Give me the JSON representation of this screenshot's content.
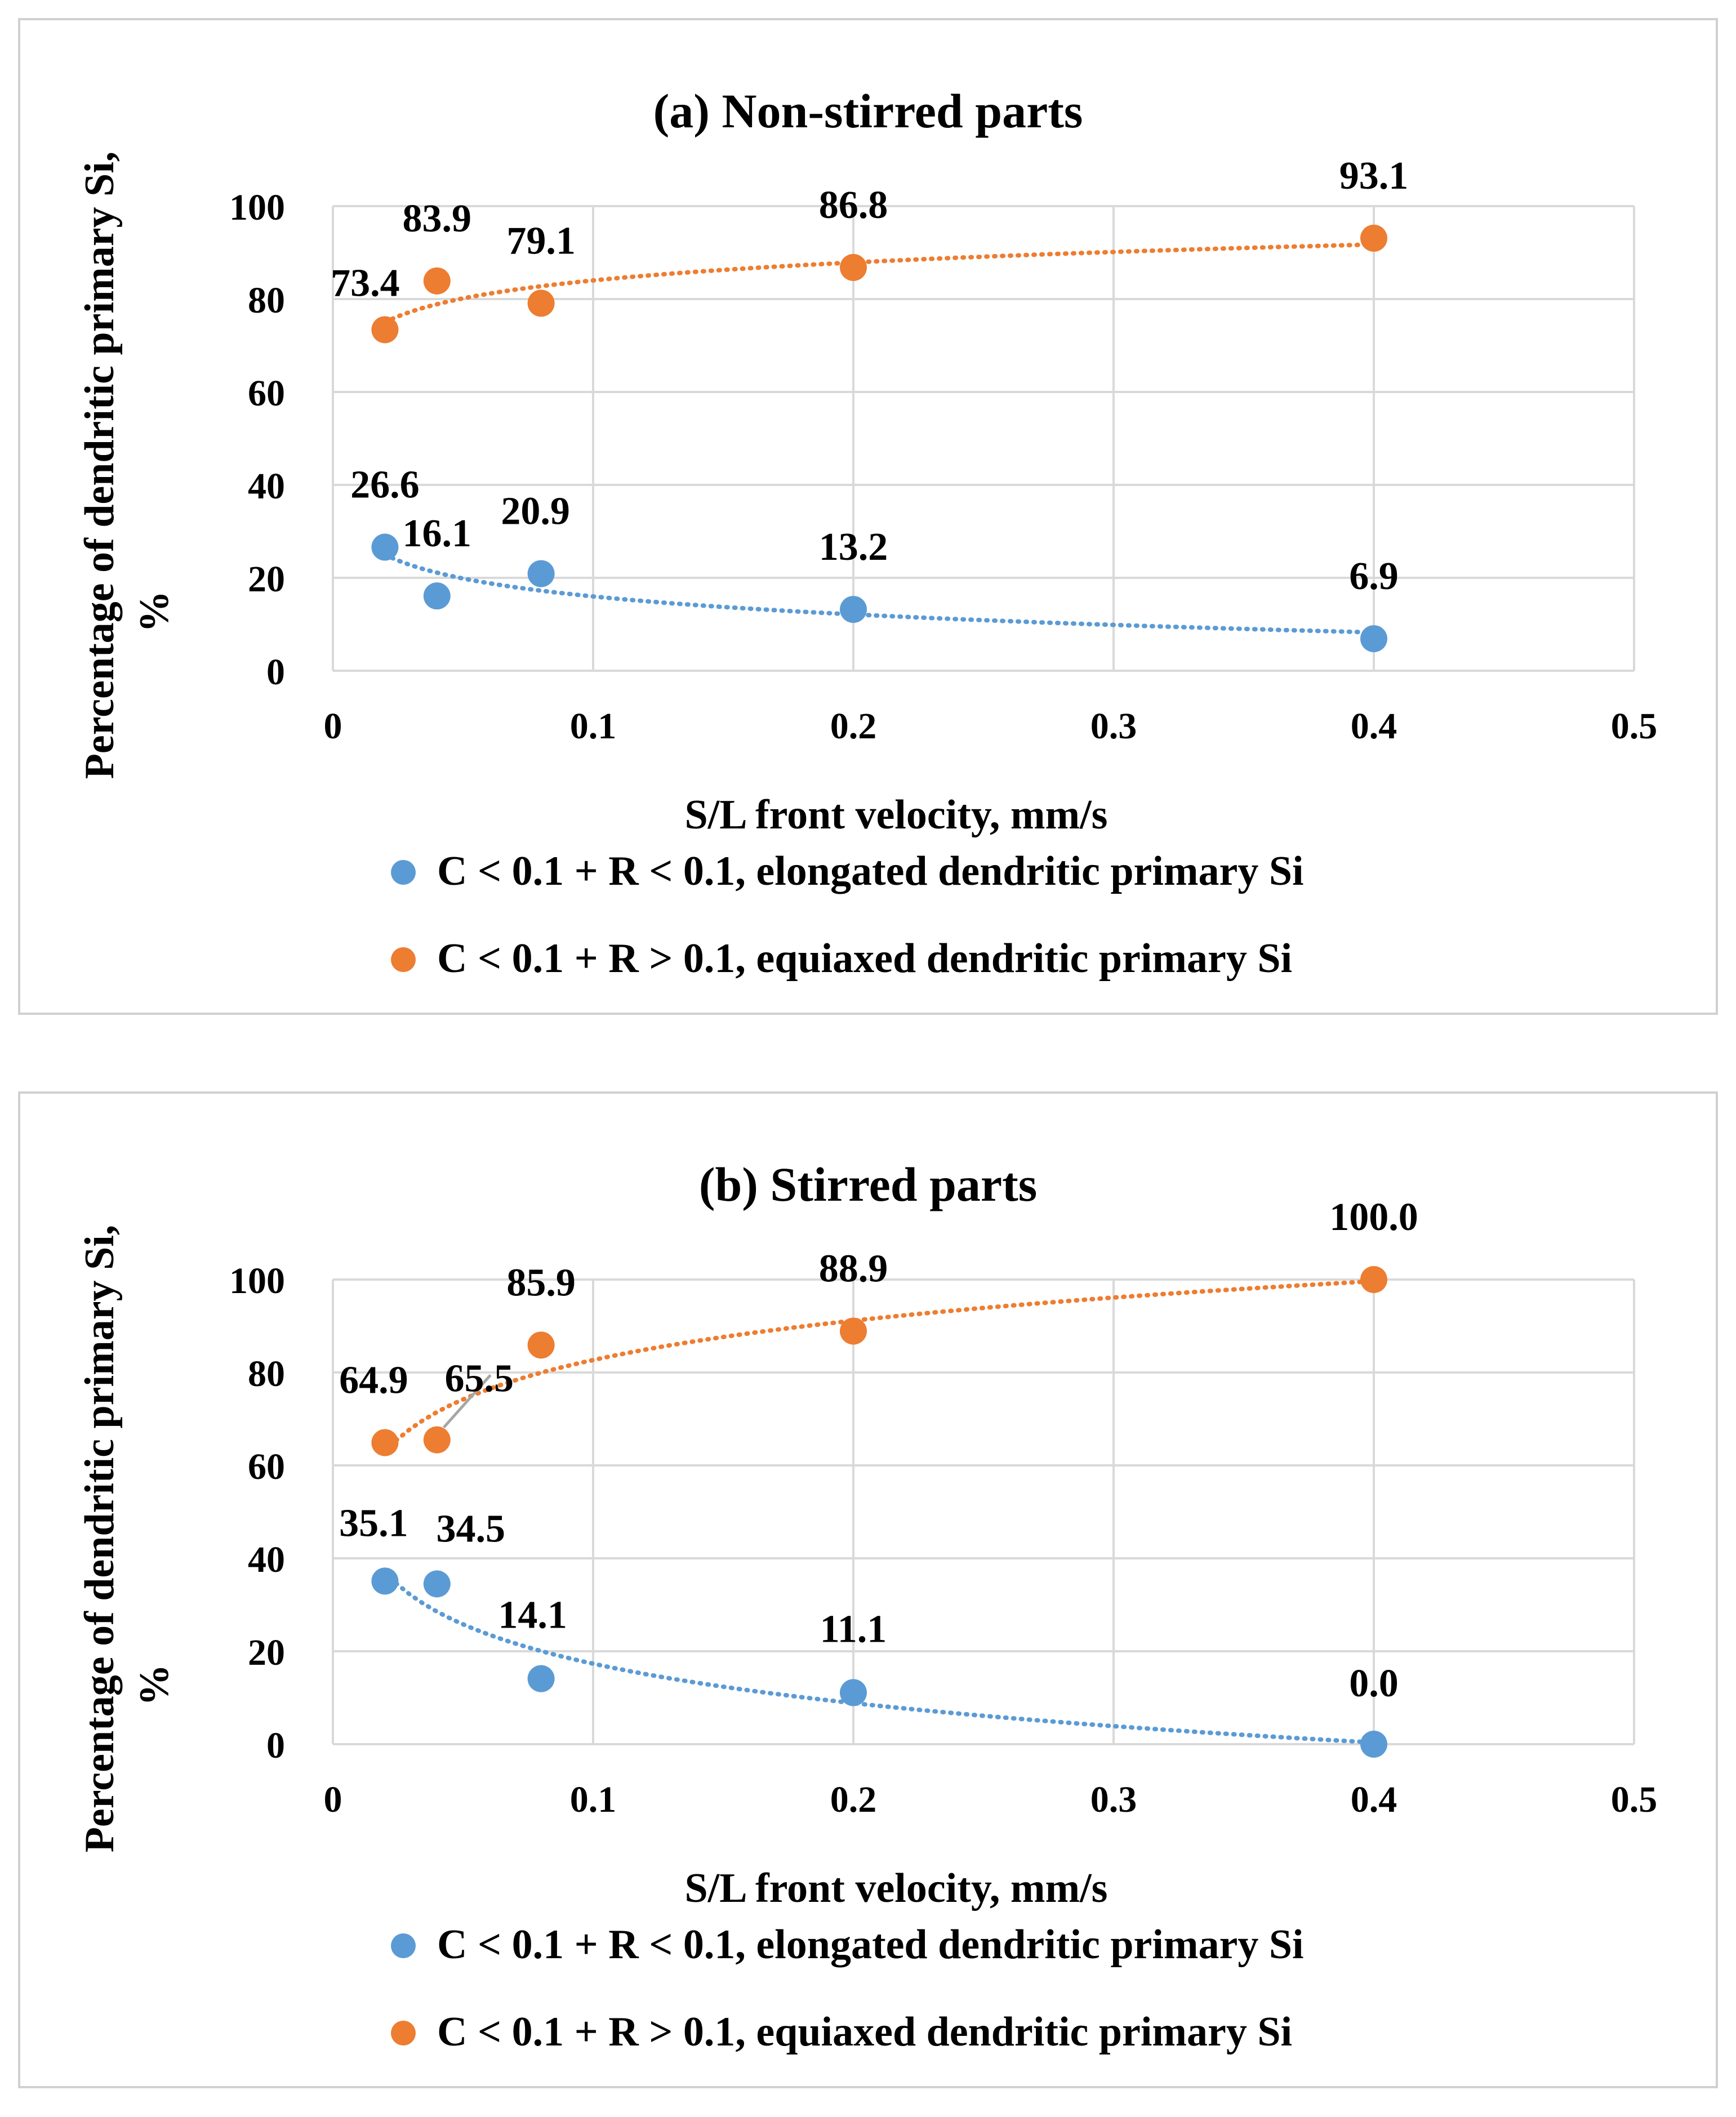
{
  "chart_data": [
    {
      "type": "scatter",
      "title": "(a) Non-stirred parts",
      "xlabel": "S/L front  velocity, mm/s",
      "ylabel_lines": [
        "Percentage of dendritic primary Si,",
        "%"
      ],
      "xlim": [
        0,
        0.5
      ],
      "ylim": [
        0,
        100
      ],
      "xticks": [
        0,
        0.1,
        0.2,
        0.3,
        0.4,
        0.5
      ],
      "xtick_labels": [
        "0",
        "0.1",
        "0.2",
        "0.3",
        "0.4",
        "0.5"
      ],
      "yticks": [
        0,
        20,
        40,
        60,
        80,
        100
      ],
      "ytick_labels": [
        "0",
        "20",
        "40",
        "60",
        "80",
        "100"
      ],
      "grid": true,
      "legend_position": "bottom",
      "series": [
        {
          "name": "C < 0.1 + R < 0.1, elongated dendritic primary Si",
          "color": "#5b9bd5",
          "trendline": "dotted",
          "x": [
            0.02,
            0.04,
            0.08,
            0.2,
            0.4
          ],
          "values": [
            26.6,
            16.1,
            20.9,
            13.2,
            6.9
          ],
          "labels": [
            "26.6",
            "16.1",
            "20.9",
            "13.2",
            "6.9"
          ]
        },
        {
          "name": "C < 0.1 + R > 0.1, equiaxed dendritic primary Si",
          "color": "#ed7d31",
          "trendline": "dotted",
          "x": [
            0.02,
            0.04,
            0.08,
            0.2,
            0.4
          ],
          "values": [
            73.4,
            83.9,
            79.1,
            86.8,
            93.1
          ],
          "labels": [
            "73.4",
            "83.9",
            "79.1",
            "86.8",
            "93.1"
          ]
        }
      ]
    },
    {
      "type": "scatter",
      "title": "(b) Stirred parts",
      "xlabel": "S/L front  velocity, mm/s",
      "ylabel_lines": [
        "Percentage of dendritic primary Si,",
        "%"
      ],
      "xlim": [
        0,
        0.5
      ],
      "ylim": [
        0,
        100
      ],
      "xticks": [
        0,
        0.1,
        0.2,
        0.3,
        0.4,
        0.5
      ],
      "xtick_labels": [
        "0",
        "0.1",
        "0.2",
        "0.3",
        "0.4",
        "0.5"
      ],
      "yticks": [
        0,
        20,
        40,
        60,
        80,
        100
      ],
      "ytick_labels": [
        "0",
        "20",
        "40",
        "60",
        "80",
        "100"
      ],
      "grid": true,
      "legend_position": "bottom",
      "series": [
        {
          "name": "C < 0.1 + R < 0.1, elongated dendritic primary Si",
          "color": "#5b9bd5",
          "trendline": "dotted",
          "x": [
            0.02,
            0.04,
            0.08,
            0.2,
            0.4
          ],
          "values": [
            35.1,
            34.5,
            14.1,
            11.1,
            0.0
          ],
          "labels": [
            "35.1",
            "34.5",
            "14.1",
            "11.1",
            "0.0"
          ]
        },
        {
          "name": "C < 0.1 + R > 0.1, equiaxed dendritic primary Si",
          "color": "#ed7d31",
          "trendline": "dotted",
          "x": [
            0.02,
            0.04,
            0.08,
            0.2,
            0.4
          ],
          "values": [
            64.9,
            65.5,
            85.9,
            88.9,
            100.0
          ],
          "labels": [
            "64.9",
            "65.5",
            "85.9",
            "88.9",
            "100.0"
          ]
        }
      ]
    }
  ]
}
